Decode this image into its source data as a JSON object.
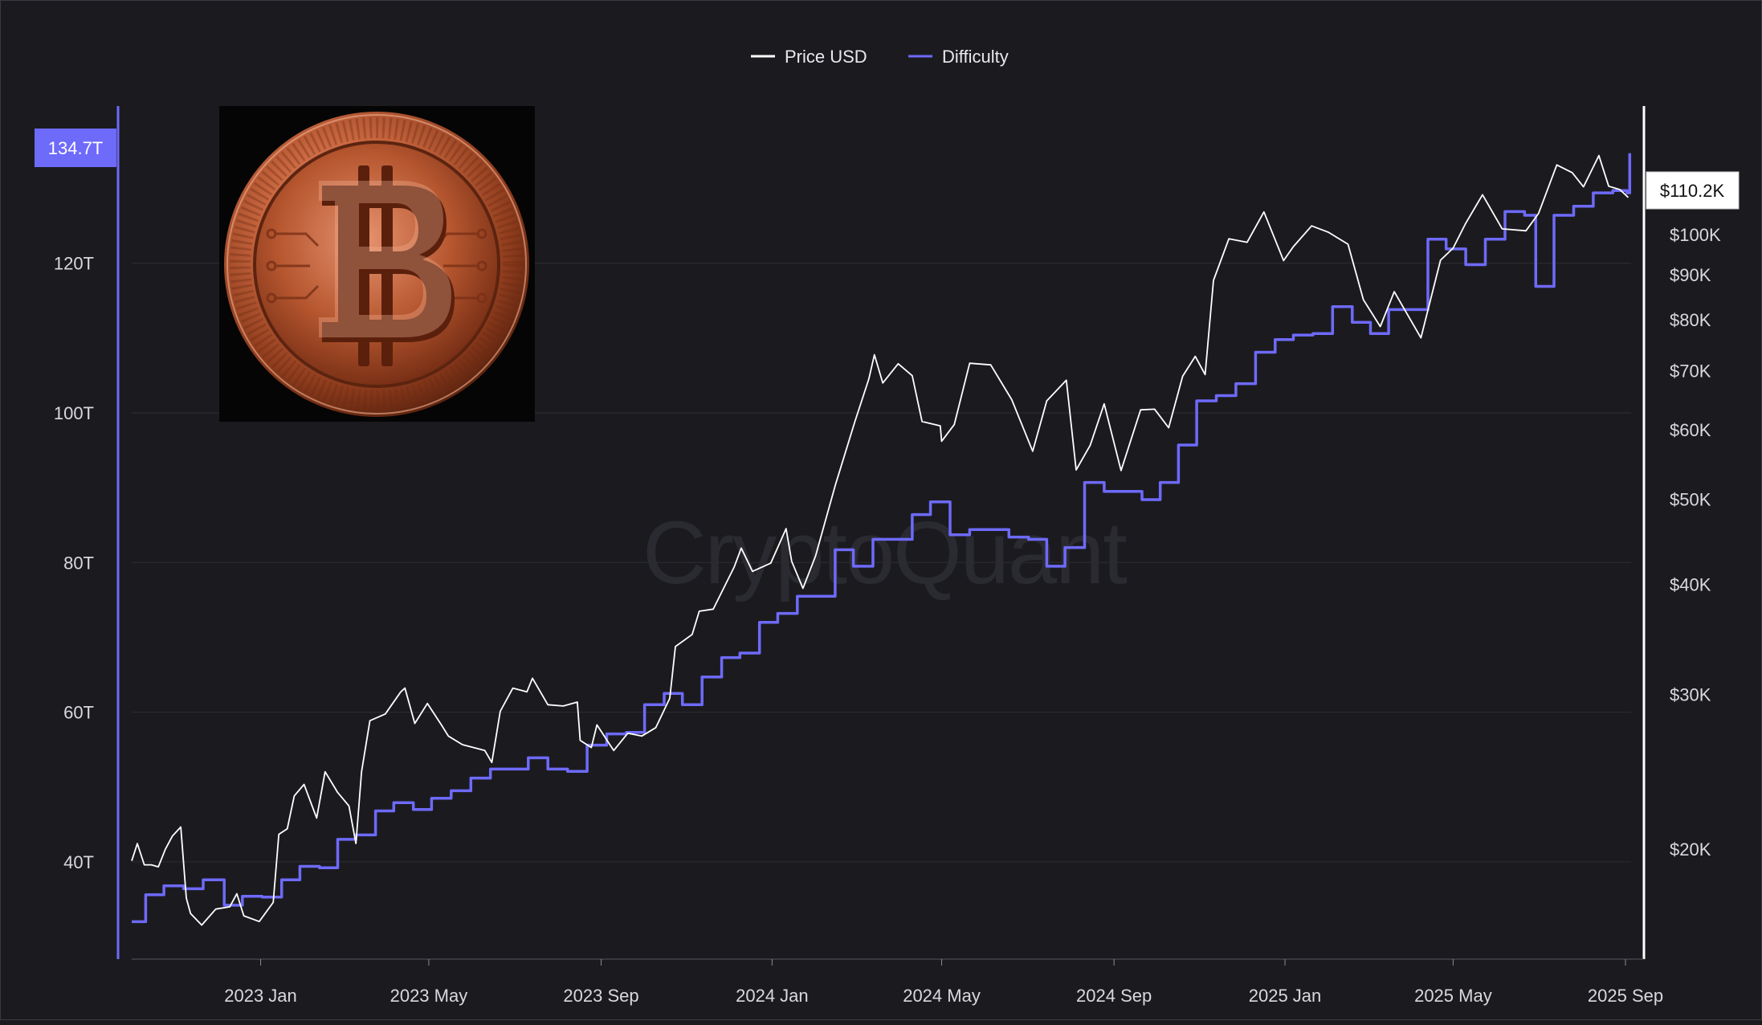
{
  "chart_data": {
    "type": "line",
    "watermark": "CryptoQuant",
    "legend": {
      "position": "top-center",
      "items": [
        {
          "label": "Price USD",
          "color": "#ffffff"
        },
        {
          "label": "Difficulty",
          "color": "#6e6afa"
        }
      ]
    },
    "x_axis": {
      "range": [
        "2022-10-01",
        "2025-09-05"
      ],
      "tick_labels": [
        "2023 Jan",
        "2023 May",
        "2023 Sep",
        "2024 Jan",
        "2024 May",
        "2024 Sep",
        "2025 Jan",
        "2025 May",
        "2025 Sep"
      ],
      "tick_dates": [
        "2023-01-01",
        "2023-05-01",
        "2023-09-01",
        "2024-01-01",
        "2024-05-01",
        "2024-09-01",
        "2025-01-01",
        "2025-05-01",
        "2025-09-01"
      ]
    },
    "left_axis": {
      "series": "Difficulty",
      "unit": "T",
      "range": [
        27,
        141
      ],
      "ticks": [
        40,
        60,
        80,
        100,
        120
      ],
      "tick_labels": [
        "40T",
        "60T",
        "80T",
        "100T",
        "120T"
      ],
      "current_value_label": "134.7T",
      "current_value": 134.7,
      "color": "#6e6afa"
    },
    "right_axis": {
      "series": "Price USD",
      "scale": "log",
      "range": [
        15000,
        140000
      ],
      "ticks": [
        20000,
        30000,
        40000,
        50000,
        60000,
        70000,
        80000,
        90000,
        100000
      ],
      "tick_labels": [
        "$20K",
        "$30K",
        "$40K",
        "$50K",
        "$60K",
        "$70K",
        "$80K",
        "$90K",
        "$100K"
      ],
      "current_value_label": "$110.2K",
      "current_value": 110200,
      "color": "#ffffff"
    },
    "series": [
      {
        "name": "Price USD",
        "axis": "right",
        "color": "#ffffff",
        "points": [
          [
            "2022-10-01",
            19400
          ],
          [
            "2022-10-05",
            20300
          ],
          [
            "2022-10-10",
            19200
          ],
          [
            "2022-10-15",
            19200
          ],
          [
            "2022-10-20",
            19100
          ],
          [
            "2022-10-25",
            20000
          ],
          [
            "2022-10-30",
            20700
          ],
          [
            "2022-11-05",
            21200
          ],
          [
            "2022-11-09",
            17600
          ],
          [
            "2022-11-12",
            16900
          ],
          [
            "2022-11-20",
            16400
          ],
          [
            "2022-11-30",
            17100
          ],
          [
            "2022-12-10",
            17200
          ],
          [
            "2022-12-15",
            17800
          ],
          [
            "2022-12-20",
            16800
          ],
          [
            "2022-12-31",
            16550
          ],
          [
            "2023-01-10",
            17400
          ],
          [
            "2023-01-14",
            20800
          ],
          [
            "2023-01-20",
            21100
          ],
          [
            "2023-01-25",
            23000
          ],
          [
            "2023-02-01",
            23700
          ],
          [
            "2023-02-10",
            21700
          ],
          [
            "2023-02-16",
            24500
          ],
          [
            "2023-02-25",
            23200
          ],
          [
            "2023-03-05",
            22400
          ],
          [
            "2023-03-10",
            20300
          ],
          [
            "2023-03-14",
            24500
          ],
          [
            "2023-03-20",
            28000
          ],
          [
            "2023-03-31",
            28500
          ],
          [
            "2023-04-11",
            30200
          ],
          [
            "2023-04-14",
            30500
          ],
          [
            "2023-04-21",
            27800
          ],
          [
            "2023-04-30",
            29300
          ],
          [
            "2023-05-10",
            27700
          ],
          [
            "2023-05-15",
            26900
          ],
          [
            "2023-05-25",
            26300
          ],
          [
            "2023-06-10",
            25900
          ],
          [
            "2023-06-15",
            25100
          ],
          [
            "2023-06-21",
            28700
          ],
          [
            "2023-06-30",
            30500
          ],
          [
            "2023-07-10",
            30200
          ],
          [
            "2023-07-14",
            31300
          ],
          [
            "2023-07-25",
            29200
          ],
          [
            "2023-08-05",
            29100
          ],
          [
            "2023-08-15",
            29400
          ],
          [
            "2023-08-17",
            26600
          ],
          [
            "2023-08-25",
            26100
          ],
          [
            "2023-08-29",
            27700
          ],
          [
            "2023-09-10",
            25900
          ],
          [
            "2023-09-20",
            27100
          ],
          [
            "2023-09-30",
            26900
          ],
          [
            "2023-10-10",
            27500
          ],
          [
            "2023-10-20",
            29700
          ],
          [
            "2023-10-24",
            34000
          ],
          [
            "2023-11-05",
            35100
          ],
          [
            "2023-11-10",
            37300
          ],
          [
            "2023-11-20",
            37500
          ],
          [
            "2023-12-05",
            41900
          ],
          [
            "2023-12-10",
            44000
          ],
          [
            "2023-12-18",
            41400
          ],
          [
            "2023-12-31",
            42300
          ],
          [
            "2024-01-11",
            46300
          ],
          [
            "2024-01-15",
            42500
          ],
          [
            "2024-01-23",
            39600
          ],
          [
            "2024-02-01",
            43100
          ],
          [
            "2024-02-15",
            51800
          ],
          [
            "2024-02-29",
            61200
          ],
          [
            "2024-03-10",
            68500
          ],
          [
            "2024-03-14",
            73000
          ],
          [
            "2024-03-20",
            67800
          ],
          [
            "2024-03-31",
            71300
          ],
          [
            "2024-04-10",
            69100
          ],
          [
            "2024-04-17",
            61300
          ],
          [
            "2024-04-30",
            60600
          ],
          [
            "2024-05-01",
            58200
          ],
          [
            "2024-05-10",
            60800
          ],
          [
            "2024-05-21",
            71400
          ],
          [
            "2024-06-05",
            71100
          ],
          [
            "2024-06-20",
            64900
          ],
          [
            "2024-07-05",
            56700
          ],
          [
            "2024-07-15",
            64700
          ],
          [
            "2024-07-29",
            68300
          ],
          [
            "2024-08-05",
            54000
          ],
          [
            "2024-08-15",
            57600
          ],
          [
            "2024-08-25",
            64200
          ],
          [
            "2024-09-06",
            53900
          ],
          [
            "2024-09-20",
            63200
          ],
          [
            "2024-09-30",
            63300
          ],
          [
            "2024-10-10",
            60300
          ],
          [
            "2024-10-20",
            69000
          ],
          [
            "2024-10-29",
            72700
          ],
          [
            "2024-11-05",
            69300
          ],
          [
            "2024-11-11",
            88700
          ],
          [
            "2024-11-22",
            98900
          ],
          [
            "2024-12-05",
            98000
          ],
          [
            "2024-12-17",
            106100
          ],
          [
            "2024-12-31",
            93400
          ],
          [
            "2025-01-07",
            96900
          ],
          [
            "2025-01-20",
            102300
          ],
          [
            "2025-02-01",
            100600
          ],
          [
            "2025-02-15",
            97500
          ],
          [
            "2025-02-26",
            84300
          ],
          [
            "2025-03-10",
            78600
          ],
          [
            "2025-03-20",
            86100
          ],
          [
            "2025-04-08",
            76300
          ],
          [
            "2025-04-22",
            93500
          ],
          [
            "2025-05-01",
            96500
          ],
          [
            "2025-05-10",
            103000
          ],
          [
            "2025-05-22",
            111000
          ],
          [
            "2025-06-05",
            101500
          ],
          [
            "2025-06-22",
            101000
          ],
          [
            "2025-07-01",
            105700
          ],
          [
            "2025-07-14",
            120000
          ],
          [
            "2025-07-25",
            117600
          ],
          [
            "2025-08-02",
            113300
          ],
          [
            "2025-08-13",
            123000
          ],
          [
            "2025-08-20",
            113500
          ],
          [
            "2025-08-28",
            112500
          ],
          [
            "2025-09-03",
            110200
          ]
        ]
      },
      {
        "name": "Difficulty",
        "axis": "left",
        "color": "#6e6afa",
        "step": true,
        "points": [
          [
            "2022-10-01",
            32.0
          ],
          [
            "2022-10-11",
            35.6
          ],
          [
            "2022-10-24",
            36.8
          ],
          [
            "2022-11-07",
            36.4
          ],
          [
            "2022-11-21",
            37.6
          ],
          [
            "2022-12-06",
            34.2
          ],
          [
            "2022-12-19",
            35.4
          ],
          [
            "2023-01-02",
            35.3
          ],
          [
            "2023-01-16",
            37.6
          ],
          [
            "2023-01-29",
            39.4
          ],
          [
            "2023-02-12",
            39.2
          ],
          [
            "2023-02-25",
            43.0
          ],
          [
            "2023-03-10",
            43.6
          ],
          [
            "2023-03-24",
            46.8
          ],
          [
            "2023-04-06",
            47.9
          ],
          [
            "2023-04-20",
            47.0
          ],
          [
            "2023-05-03",
            48.5
          ],
          [
            "2023-05-17",
            49.5
          ],
          [
            "2023-05-31",
            51.2
          ],
          [
            "2023-06-14",
            52.4
          ],
          [
            "2023-06-28",
            52.4
          ],
          [
            "2023-07-11",
            53.9
          ],
          [
            "2023-07-25",
            52.4
          ],
          [
            "2023-08-08",
            52.1
          ],
          [
            "2023-08-22",
            55.6
          ],
          [
            "2023-09-05",
            57.1
          ],
          [
            "2023-09-19",
            57.3
          ],
          [
            "2023-10-02",
            61.0
          ],
          [
            "2023-10-16",
            62.5
          ],
          [
            "2023-10-29",
            61.0
          ],
          [
            "2023-11-12",
            64.7
          ],
          [
            "2023-11-26",
            67.3
          ],
          [
            "2023-12-09",
            67.9
          ],
          [
            "2023-12-23",
            72.0
          ],
          [
            "2024-01-05",
            73.2
          ],
          [
            "2024-01-19",
            75.5
          ],
          [
            "2024-02-01",
            75.5
          ],
          [
            "2024-02-15",
            81.7
          ],
          [
            "2024-02-28",
            79.5
          ],
          [
            "2024-03-13",
            83.1
          ],
          [
            "2024-03-27",
            83.1
          ],
          [
            "2024-04-10",
            86.4
          ],
          [
            "2024-04-23",
            88.1
          ],
          [
            "2024-05-07",
            83.7
          ],
          [
            "2024-05-21",
            84.4
          ],
          [
            "2024-06-04",
            84.4
          ],
          [
            "2024-06-18",
            83.4
          ],
          [
            "2024-07-02",
            83.1
          ],
          [
            "2024-07-15",
            79.5
          ],
          [
            "2024-07-28",
            82.0
          ],
          [
            "2024-08-11",
            90.7
          ],
          [
            "2024-08-25",
            89.5
          ],
          [
            "2024-09-07",
            89.5
          ],
          [
            "2024-09-21",
            88.4
          ],
          [
            "2024-10-04",
            90.7
          ],
          [
            "2024-10-17",
            95.7
          ],
          [
            "2024-10-30",
            101.6
          ],
          [
            "2024-11-13",
            102.3
          ],
          [
            "2024-11-27",
            103.9
          ],
          [
            "2024-12-11",
            108.1
          ],
          [
            "2024-12-25",
            109.8
          ],
          [
            "2025-01-07",
            110.4
          ],
          [
            "2025-01-21",
            110.6
          ],
          [
            "2025-02-04",
            114.2
          ],
          [
            "2025-02-18",
            112.1
          ],
          [
            "2025-03-03",
            110.6
          ],
          [
            "2025-03-16",
            113.8
          ],
          [
            "2025-03-30",
            113.8
          ],
          [
            "2025-04-13",
            123.2
          ],
          [
            "2025-04-26",
            121.9
          ],
          [
            "2025-05-10",
            119.8
          ],
          [
            "2025-05-24",
            123.2
          ],
          [
            "2025-06-07",
            126.9
          ],
          [
            "2025-06-21",
            126.4
          ],
          [
            "2025-06-29",
            116.9
          ],
          [
            "2025-07-07",
            116.9
          ],
          [
            "2025-07-12",
            126.4
          ],
          [
            "2025-07-26",
            127.6
          ],
          [
            "2025-08-09",
            129.4
          ],
          [
            "2025-08-23",
            129.7
          ],
          [
            "2025-09-02",
            129.4
          ],
          [
            "2025-09-04",
            134.7
          ]
        ]
      }
    ]
  }
}
